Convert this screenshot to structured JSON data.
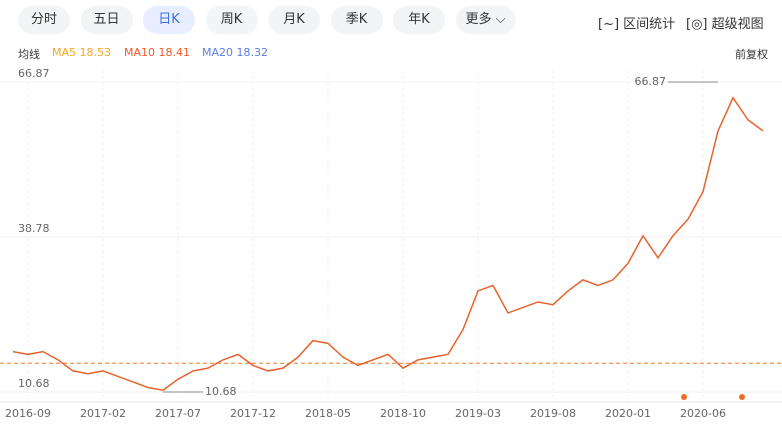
{
  "toolbar": {
    "tabs": [
      "分时",
      "五日",
      "日K",
      "周K",
      "月K",
      "季K",
      "年K",
      "更多"
    ],
    "active": 2,
    "tools": [
      "区间统计",
      "超级视图"
    ]
  },
  "legend": {
    "label": "均线",
    "items": [
      {
        "text": "MA5 18.53",
        "color": "#f5a623"
      },
      {
        "text": "MA10 18.41",
        "color": "#f05a28"
      },
      {
        "text": "MA20 18.32",
        "color": "#5b7ee5"
      }
    ],
    "adjust": "前复权"
  },
  "chart_data": {
    "type": "line",
    "x": [
      "2016-08",
      "2016-09",
      "2016-10",
      "2016-11",
      "2016-12",
      "2017-01",
      "2017-02",
      "2017-03",
      "2017-04",
      "2017-05",
      "2017-06",
      "2017-07",
      "2017-08",
      "2017-09",
      "2017-10",
      "2017-11",
      "2017-12",
      "2018-01",
      "2018-02",
      "2018-03",
      "2018-04",
      "2018-05",
      "2018-06",
      "2018-07",
      "2018-08",
      "2018-09",
      "2018-10",
      "2018-11",
      "2018-12",
      "2019-01",
      "2019-02",
      "2019-03",
      "2019-04",
      "2019-05",
      "2019-06",
      "2019-07",
      "2019-08",
      "2019-09",
      "2019-10",
      "2019-11",
      "2019-12",
      "2020-01",
      "2020-02",
      "2020-03",
      "2020-04",
      "2020-05",
      "2020-06",
      "2020-07",
      "2020-08",
      "2020-09",
      "2020-10"
    ],
    "series": [
      {
        "color": "#e8622c",
        "values": [
          18,
          17.5,
          18,
          16.5,
          14.5,
          14,
          14.5,
          13.5,
          12.5,
          11.5,
          11,
          13,
          14.5,
          15,
          16.5,
          17.5,
          15.5,
          14.5,
          15,
          17,
          20,
          19.5,
          17,
          15.5,
          16.5,
          17.5,
          15,
          16.5,
          17,
          17.5,
          22,
          29,
          30,
          25,
          26,
          27,
          26.5,
          29,
          31,
          30,
          31,
          34,
          39,
          35,
          39,
          42,
          47,
          58,
          64,
          60,
          58
        ]
      }
    ],
    "xticks": [
      "2016-09",
      "2017-02",
      "2017-07",
      "2017-12",
      "2018-05",
      "2018-10",
      "2019-03",
      "2019-08",
      "2020-01",
      "2020-06"
    ],
    "ylim": [
      10.68,
      66.87
    ],
    "yticks": [
      66.87,
      38.78,
      10.68
    ],
    "grid": true,
    "reference_line": 15.9,
    "annotations": [
      {
        "value": 66.87,
        "label": "66.87",
        "x": "2020-07"
      },
      {
        "value": 10.68,
        "label": "10.68",
        "x": "2017-06"
      }
    ]
  }
}
